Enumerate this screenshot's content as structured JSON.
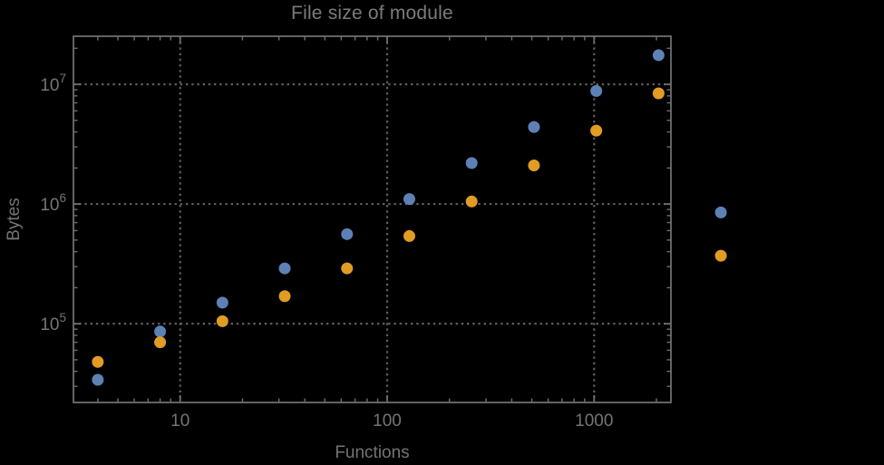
{
  "window": {
    "background": "#000000"
  },
  "chart_data": {
    "type": "scatter",
    "title": "File size of module",
    "xlabel": "Functions",
    "ylabel": "Bytes",
    "x_scale": "log",
    "y_scale": "log",
    "x_range": [
      3.05,
      2350
    ],
    "y_range": [
      22000,
      25200000
    ],
    "grid": "dotted",
    "legend": "none",
    "x_ticks": [
      {
        "label": "10",
        "value": 10
      },
      {
        "label": "100",
        "value": 100
      },
      {
        "label": "1000",
        "value": 1000
      }
    ],
    "y_ticks": [
      {
        "base": "10",
        "exp": "5",
        "value": 100000
      },
      {
        "base": "10",
        "exp": "6",
        "value": 1000000
      },
      {
        "base": "10",
        "exp": "7",
        "value": 10000000
      }
    ],
    "x": [
      4,
      8,
      16,
      32,
      64,
      128,
      256,
      512,
      1024,
      2048,
      4096
    ],
    "series": [
      {
        "name": "blue-series",
        "color": "#5E81B5",
        "values": [
          34000,
          86000,
          150000,
          290000,
          560000,
          1100000,
          2200000,
          4400000,
          8800000,
          17500000,
          850000
        ]
      },
      {
        "name": "orange-series",
        "color": "#E19C24",
        "values": [
          48000,
          70000,
          105000,
          170000,
          290000,
          540000,
          1050000,
          2100000,
          4100000,
          8400000,
          370000
        ]
      }
    ],
    "colors": {
      "background": "#000000",
      "frame": "#6e6e6e",
      "grid": "#5e5e5e",
      "tick_text": "#747474",
      "title_text": "#7b7b7b"
    }
  }
}
